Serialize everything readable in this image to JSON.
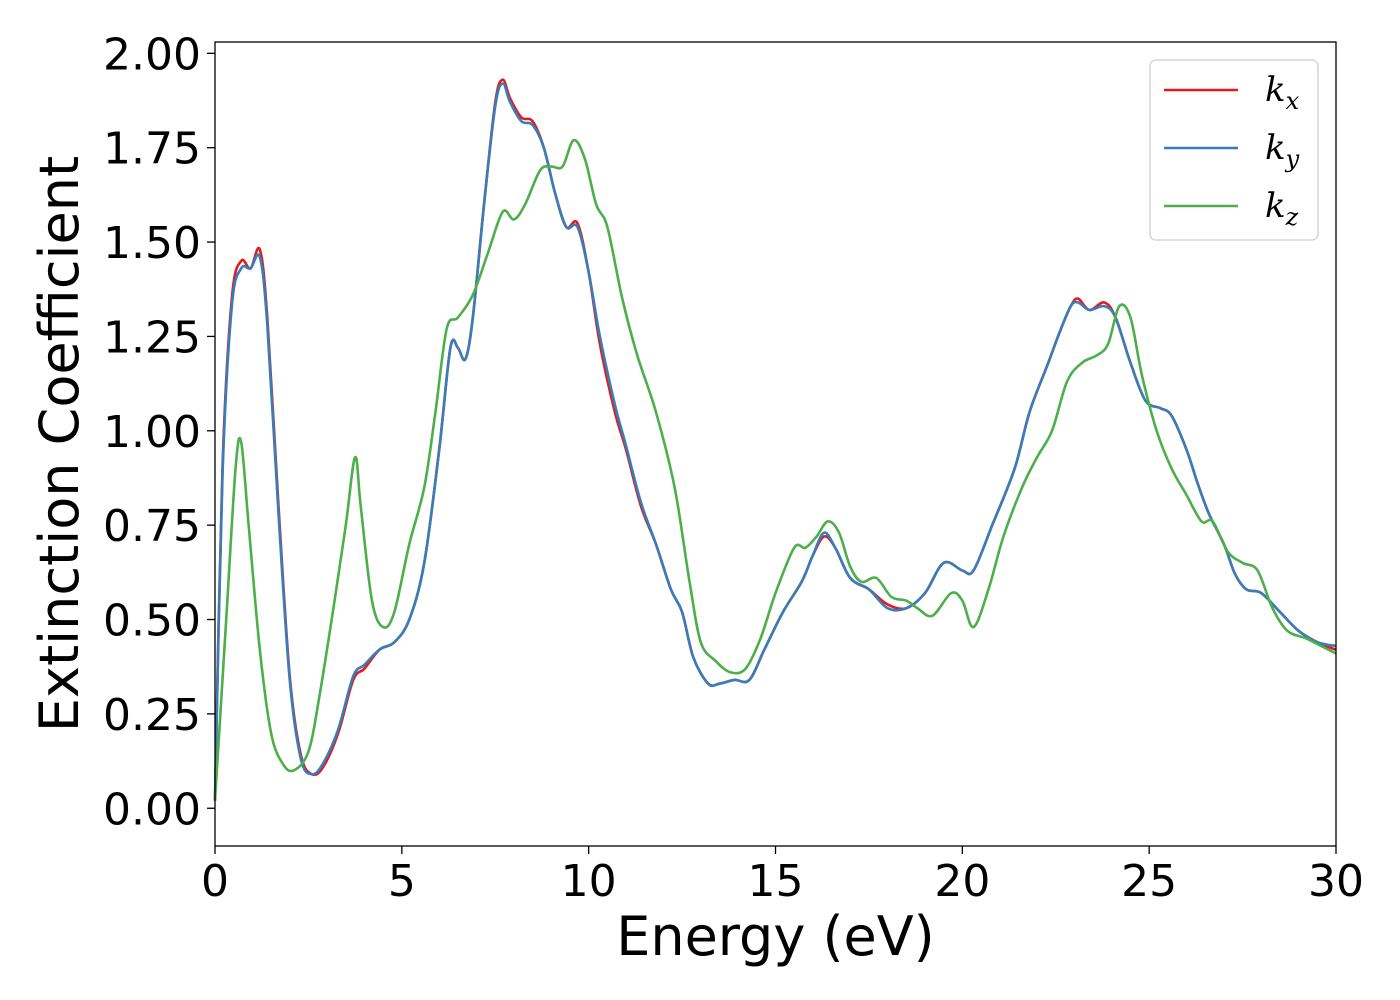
{
  "chart_data": {
    "type": "line",
    "title": "",
    "xlabel": "Energy (eV)",
    "ylabel": "Extinction Coefficient",
    "xlim": [
      0,
      30
    ],
    "ylim": [
      -0.1,
      2.03
    ],
    "xticks": [
      0,
      5,
      10,
      15,
      20,
      25,
      30
    ],
    "xtick_labels": [
      "0",
      "5",
      "10",
      "15",
      "20",
      "25",
      "30"
    ],
    "yticks": [
      0,
      0.25,
      0.5,
      0.75,
      1.0,
      1.25,
      1.5,
      1.75,
      2.0
    ],
    "ytick_labels": [
      "0.00",
      "0.25",
      "0.50",
      "0.75",
      "1.00",
      "1.25",
      "1.50",
      "1.75",
      "2.00"
    ],
    "grid": false,
    "legend_position": "top-right",
    "series": [
      {
        "name": "k_x",
        "label_main": "k",
        "label_sub": "x",
        "color": "#e41a1c",
        "points": [
          [
            0,
            0.02
          ],
          [
            0.2,
            0.9
          ],
          [
            0.45,
            1.35
          ],
          [
            0.7,
            1.45
          ],
          [
            0.95,
            1.43
          ],
          [
            1.2,
            1.48
          ],
          [
            1.4,
            1.3
          ],
          [
            1.7,
            0.8
          ],
          [
            2.0,
            0.35
          ],
          [
            2.3,
            0.14
          ],
          [
            2.6,
            0.09
          ],
          [
            2.9,
            0.11
          ],
          [
            3.3,
            0.2
          ],
          [
            3.7,
            0.34
          ],
          [
            4.0,
            0.37
          ],
          [
            4.4,
            0.42
          ],
          [
            4.8,
            0.44
          ],
          [
            5.2,
            0.5
          ],
          [
            5.6,
            0.65
          ],
          [
            6.0,
            0.95
          ],
          [
            6.3,
            1.22
          ],
          [
            6.5,
            1.22
          ],
          [
            6.7,
            1.19
          ],
          [
            6.9,
            1.3
          ],
          [
            7.2,
            1.6
          ],
          [
            7.5,
            1.87
          ],
          [
            7.7,
            1.93
          ],
          [
            7.9,
            1.88
          ],
          [
            8.2,
            1.83
          ],
          [
            8.5,
            1.82
          ],
          [
            8.8,
            1.75
          ],
          [
            9.1,
            1.63
          ],
          [
            9.4,
            1.54
          ],
          [
            9.7,
            1.55
          ],
          [
            10.0,
            1.42
          ],
          [
            10.3,
            1.23
          ],
          [
            10.7,
            1.05
          ],
          [
            11.0,
            0.95
          ],
          [
            11.4,
            0.8
          ],
          [
            11.8,
            0.7
          ],
          [
            12.2,
            0.58
          ],
          [
            12.5,
            0.52
          ],
          [
            12.8,
            0.4
          ],
          [
            13.2,
            0.33
          ],
          [
            13.5,
            0.33
          ],
          [
            13.9,
            0.34
          ],
          [
            14.3,
            0.34
          ],
          [
            14.7,
            0.42
          ],
          [
            15.2,
            0.52
          ],
          [
            15.7,
            0.6
          ],
          [
            16.0,
            0.67
          ],
          [
            16.3,
            0.72
          ],
          [
            16.6,
            0.69
          ],
          [
            17.0,
            0.61
          ],
          [
            17.5,
            0.58
          ],
          [
            18.0,
            0.54
          ],
          [
            18.5,
            0.53
          ],
          [
            19.0,
            0.57
          ],
          [
            19.5,
            0.65
          ],
          [
            20.0,
            0.63
          ],
          [
            20.3,
            0.63
          ],
          [
            20.8,
            0.75
          ],
          [
            21.4,
            0.9
          ],
          [
            21.8,
            1.05
          ],
          [
            22.3,
            1.18
          ],
          [
            22.6,
            1.26
          ],
          [
            22.9,
            1.33
          ],
          [
            23.1,
            1.35
          ],
          [
            23.4,
            1.32
          ],
          [
            23.8,
            1.34
          ],
          [
            24.1,
            1.3
          ],
          [
            24.5,
            1.18
          ],
          [
            24.9,
            1.08
          ],
          [
            25.3,
            1.06
          ],
          [
            25.6,
            1.04
          ],
          [
            26.0,
            0.95
          ],
          [
            26.3,
            0.86
          ],
          [
            26.6,
            0.78
          ],
          [
            27.0,
            0.7
          ],
          [
            27.3,
            0.62
          ],
          [
            27.6,
            0.58
          ],
          [
            28.0,
            0.57
          ],
          [
            28.5,
            0.52
          ],
          [
            29.0,
            0.47
          ],
          [
            29.5,
            0.44
          ],
          [
            30.0,
            0.42
          ]
        ]
      },
      {
        "name": "k_y",
        "label_main": "k",
        "label_sub": "y",
        "color": "#377eb8",
        "points": [
          [
            0,
            0.02
          ],
          [
            0.2,
            0.88
          ],
          [
            0.45,
            1.33
          ],
          [
            0.7,
            1.43
          ],
          [
            0.95,
            1.43
          ],
          [
            1.2,
            1.46
          ],
          [
            1.4,
            1.28
          ],
          [
            1.7,
            0.78
          ],
          [
            2.0,
            0.34
          ],
          [
            2.3,
            0.13
          ],
          [
            2.6,
            0.09
          ],
          [
            2.9,
            0.12
          ],
          [
            3.3,
            0.21
          ],
          [
            3.7,
            0.35
          ],
          [
            4.0,
            0.38
          ],
          [
            4.4,
            0.42
          ],
          [
            4.8,
            0.44
          ],
          [
            5.2,
            0.5
          ],
          [
            5.6,
            0.65
          ],
          [
            6.0,
            0.95
          ],
          [
            6.3,
            1.22
          ],
          [
            6.5,
            1.22
          ],
          [
            6.7,
            1.19
          ],
          [
            6.9,
            1.3
          ],
          [
            7.2,
            1.6
          ],
          [
            7.5,
            1.86
          ],
          [
            7.7,
            1.92
          ],
          [
            7.9,
            1.87
          ],
          [
            8.2,
            1.82
          ],
          [
            8.5,
            1.81
          ],
          [
            8.8,
            1.75
          ],
          [
            9.1,
            1.63
          ],
          [
            9.4,
            1.54
          ],
          [
            9.7,
            1.54
          ],
          [
            10.0,
            1.42
          ],
          [
            10.3,
            1.25
          ],
          [
            10.7,
            1.07
          ],
          [
            11.0,
            0.96
          ],
          [
            11.4,
            0.81
          ],
          [
            11.8,
            0.7
          ],
          [
            12.2,
            0.58
          ],
          [
            12.5,
            0.52
          ],
          [
            12.8,
            0.4
          ],
          [
            13.2,
            0.33
          ],
          [
            13.5,
            0.33
          ],
          [
            13.9,
            0.34
          ],
          [
            14.3,
            0.34
          ],
          [
            14.7,
            0.42
          ],
          [
            15.2,
            0.52
          ],
          [
            15.7,
            0.6
          ],
          [
            16.0,
            0.67
          ],
          [
            16.3,
            0.73
          ],
          [
            16.6,
            0.69
          ],
          [
            17.0,
            0.61
          ],
          [
            17.5,
            0.58
          ],
          [
            18.0,
            0.53
          ],
          [
            18.5,
            0.53
          ],
          [
            19.0,
            0.57
          ],
          [
            19.5,
            0.65
          ],
          [
            20.0,
            0.63
          ],
          [
            20.3,
            0.63
          ],
          [
            20.8,
            0.75
          ],
          [
            21.4,
            0.9
          ],
          [
            21.8,
            1.05
          ],
          [
            22.3,
            1.18
          ],
          [
            22.6,
            1.26
          ],
          [
            22.9,
            1.33
          ],
          [
            23.1,
            1.34
          ],
          [
            23.4,
            1.32
          ],
          [
            23.8,
            1.33
          ],
          [
            24.1,
            1.3
          ],
          [
            24.5,
            1.18
          ],
          [
            24.9,
            1.08
          ],
          [
            25.3,
            1.06
          ],
          [
            25.6,
            1.04
          ],
          [
            26.0,
            0.95
          ],
          [
            26.3,
            0.86
          ],
          [
            26.6,
            0.78
          ],
          [
            27.0,
            0.7
          ],
          [
            27.3,
            0.62
          ],
          [
            27.6,
            0.58
          ],
          [
            28.0,
            0.57
          ],
          [
            28.5,
            0.52
          ],
          [
            29.0,
            0.47
          ],
          [
            29.5,
            0.44
          ],
          [
            30.0,
            0.43
          ]
        ]
      },
      {
        "name": "k_z",
        "label_main": "k",
        "label_sub": "z",
        "color": "#4daf4a",
        "points": [
          [
            0,
            0.02
          ],
          [
            0.3,
            0.5
          ],
          [
            0.55,
            0.9
          ],
          [
            0.7,
            0.97
          ],
          [
            0.9,
            0.75
          ],
          [
            1.2,
            0.42
          ],
          [
            1.5,
            0.2
          ],
          [
            1.8,
            0.12
          ],
          [
            2.1,
            0.1
          ],
          [
            2.5,
            0.15
          ],
          [
            2.8,
            0.3
          ],
          [
            3.2,
            0.55
          ],
          [
            3.5,
            0.75
          ],
          [
            3.75,
            0.93
          ],
          [
            3.9,
            0.8
          ],
          [
            4.2,
            0.55
          ],
          [
            4.5,
            0.48
          ],
          [
            4.8,
            0.52
          ],
          [
            5.2,
            0.7
          ],
          [
            5.6,
            0.85
          ],
          [
            5.9,
            1.05
          ],
          [
            6.2,
            1.27
          ],
          [
            6.5,
            1.3
          ],
          [
            6.9,
            1.36
          ],
          [
            7.3,
            1.47
          ],
          [
            7.7,
            1.58
          ],
          [
            8.0,
            1.56
          ],
          [
            8.3,
            1.6
          ],
          [
            8.7,
            1.69
          ],
          [
            9.0,
            1.7
          ],
          [
            9.3,
            1.7
          ],
          [
            9.6,
            1.77
          ],
          [
            9.9,
            1.72
          ],
          [
            10.2,
            1.6
          ],
          [
            10.5,
            1.54
          ],
          [
            10.9,
            1.35
          ],
          [
            11.3,
            1.2
          ],
          [
            11.8,
            1.05
          ],
          [
            12.3,
            0.85
          ],
          [
            12.7,
            0.6
          ],
          [
            13.0,
            0.44
          ],
          [
            13.4,
            0.39
          ],
          [
            13.8,
            0.36
          ],
          [
            14.2,
            0.37
          ],
          [
            14.6,
            0.45
          ],
          [
            15.0,
            0.57
          ],
          [
            15.5,
            0.69
          ],
          [
            15.8,
            0.69
          ],
          [
            16.1,
            0.72
          ],
          [
            16.4,
            0.76
          ],
          [
            16.7,
            0.73
          ],
          [
            17.0,
            0.64
          ],
          [
            17.3,
            0.6
          ],
          [
            17.7,
            0.61
          ],
          [
            18.1,
            0.56
          ],
          [
            18.5,
            0.55
          ],
          [
            18.8,
            0.53
          ],
          [
            19.2,
            0.51
          ],
          [
            19.7,
            0.57
          ],
          [
            20.0,
            0.55
          ],
          [
            20.3,
            0.48
          ],
          [
            20.7,
            0.58
          ],
          [
            21.1,
            0.72
          ],
          [
            21.6,
            0.85
          ],
          [
            22.0,
            0.93
          ],
          [
            22.4,
            1.0
          ],
          [
            22.8,
            1.13
          ],
          [
            23.2,
            1.18
          ],
          [
            23.6,
            1.2
          ],
          [
            23.9,
            1.23
          ],
          [
            24.2,
            1.33
          ],
          [
            24.5,
            1.3
          ],
          [
            24.8,
            1.15
          ],
          [
            25.2,
            1.0
          ],
          [
            25.6,
            0.9
          ],
          [
            26.0,
            0.83
          ],
          [
            26.4,
            0.76
          ],
          [
            26.7,
            0.76
          ],
          [
            27.1,
            0.68
          ],
          [
            27.5,
            0.65
          ],
          [
            27.9,
            0.63
          ],
          [
            28.3,
            0.53
          ],
          [
            28.7,
            0.47
          ],
          [
            29.2,
            0.45
          ],
          [
            29.6,
            0.43
          ],
          [
            30.0,
            0.41
          ]
        ]
      }
    ]
  }
}
